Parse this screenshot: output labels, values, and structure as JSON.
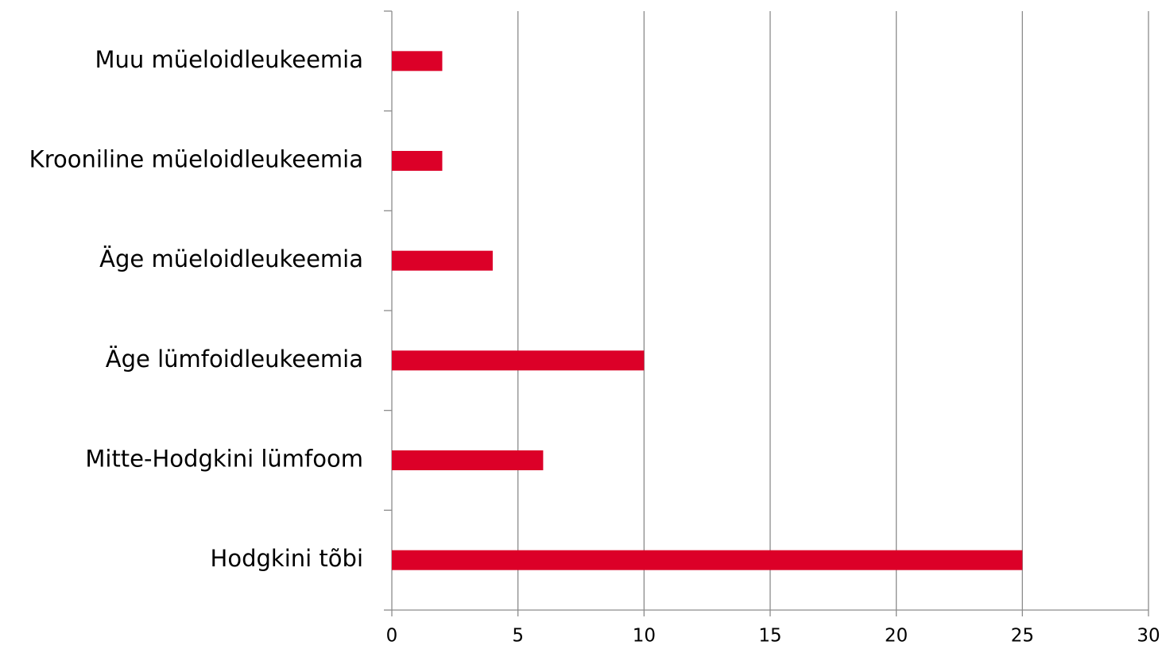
{
  "chart_data": {
    "type": "hbar",
    "categories": [
      "Muu müeloidleukeemia",
      "Krooniline müeloidleukeemia",
      "Äge müeloidleukeemia",
      "Äge lümfoidleukeemia",
      "Mitte-Hodgkini lümfoom",
      "Hodgkini tõbi"
    ],
    "values": [
      2,
      2,
      4,
      10,
      6,
      25
    ],
    "color": "#dc0028",
    "xlim": [
      0,
      30
    ],
    "xticks": [
      0,
      5,
      10,
      15,
      20,
      25,
      30
    ],
    "grid": true
  }
}
